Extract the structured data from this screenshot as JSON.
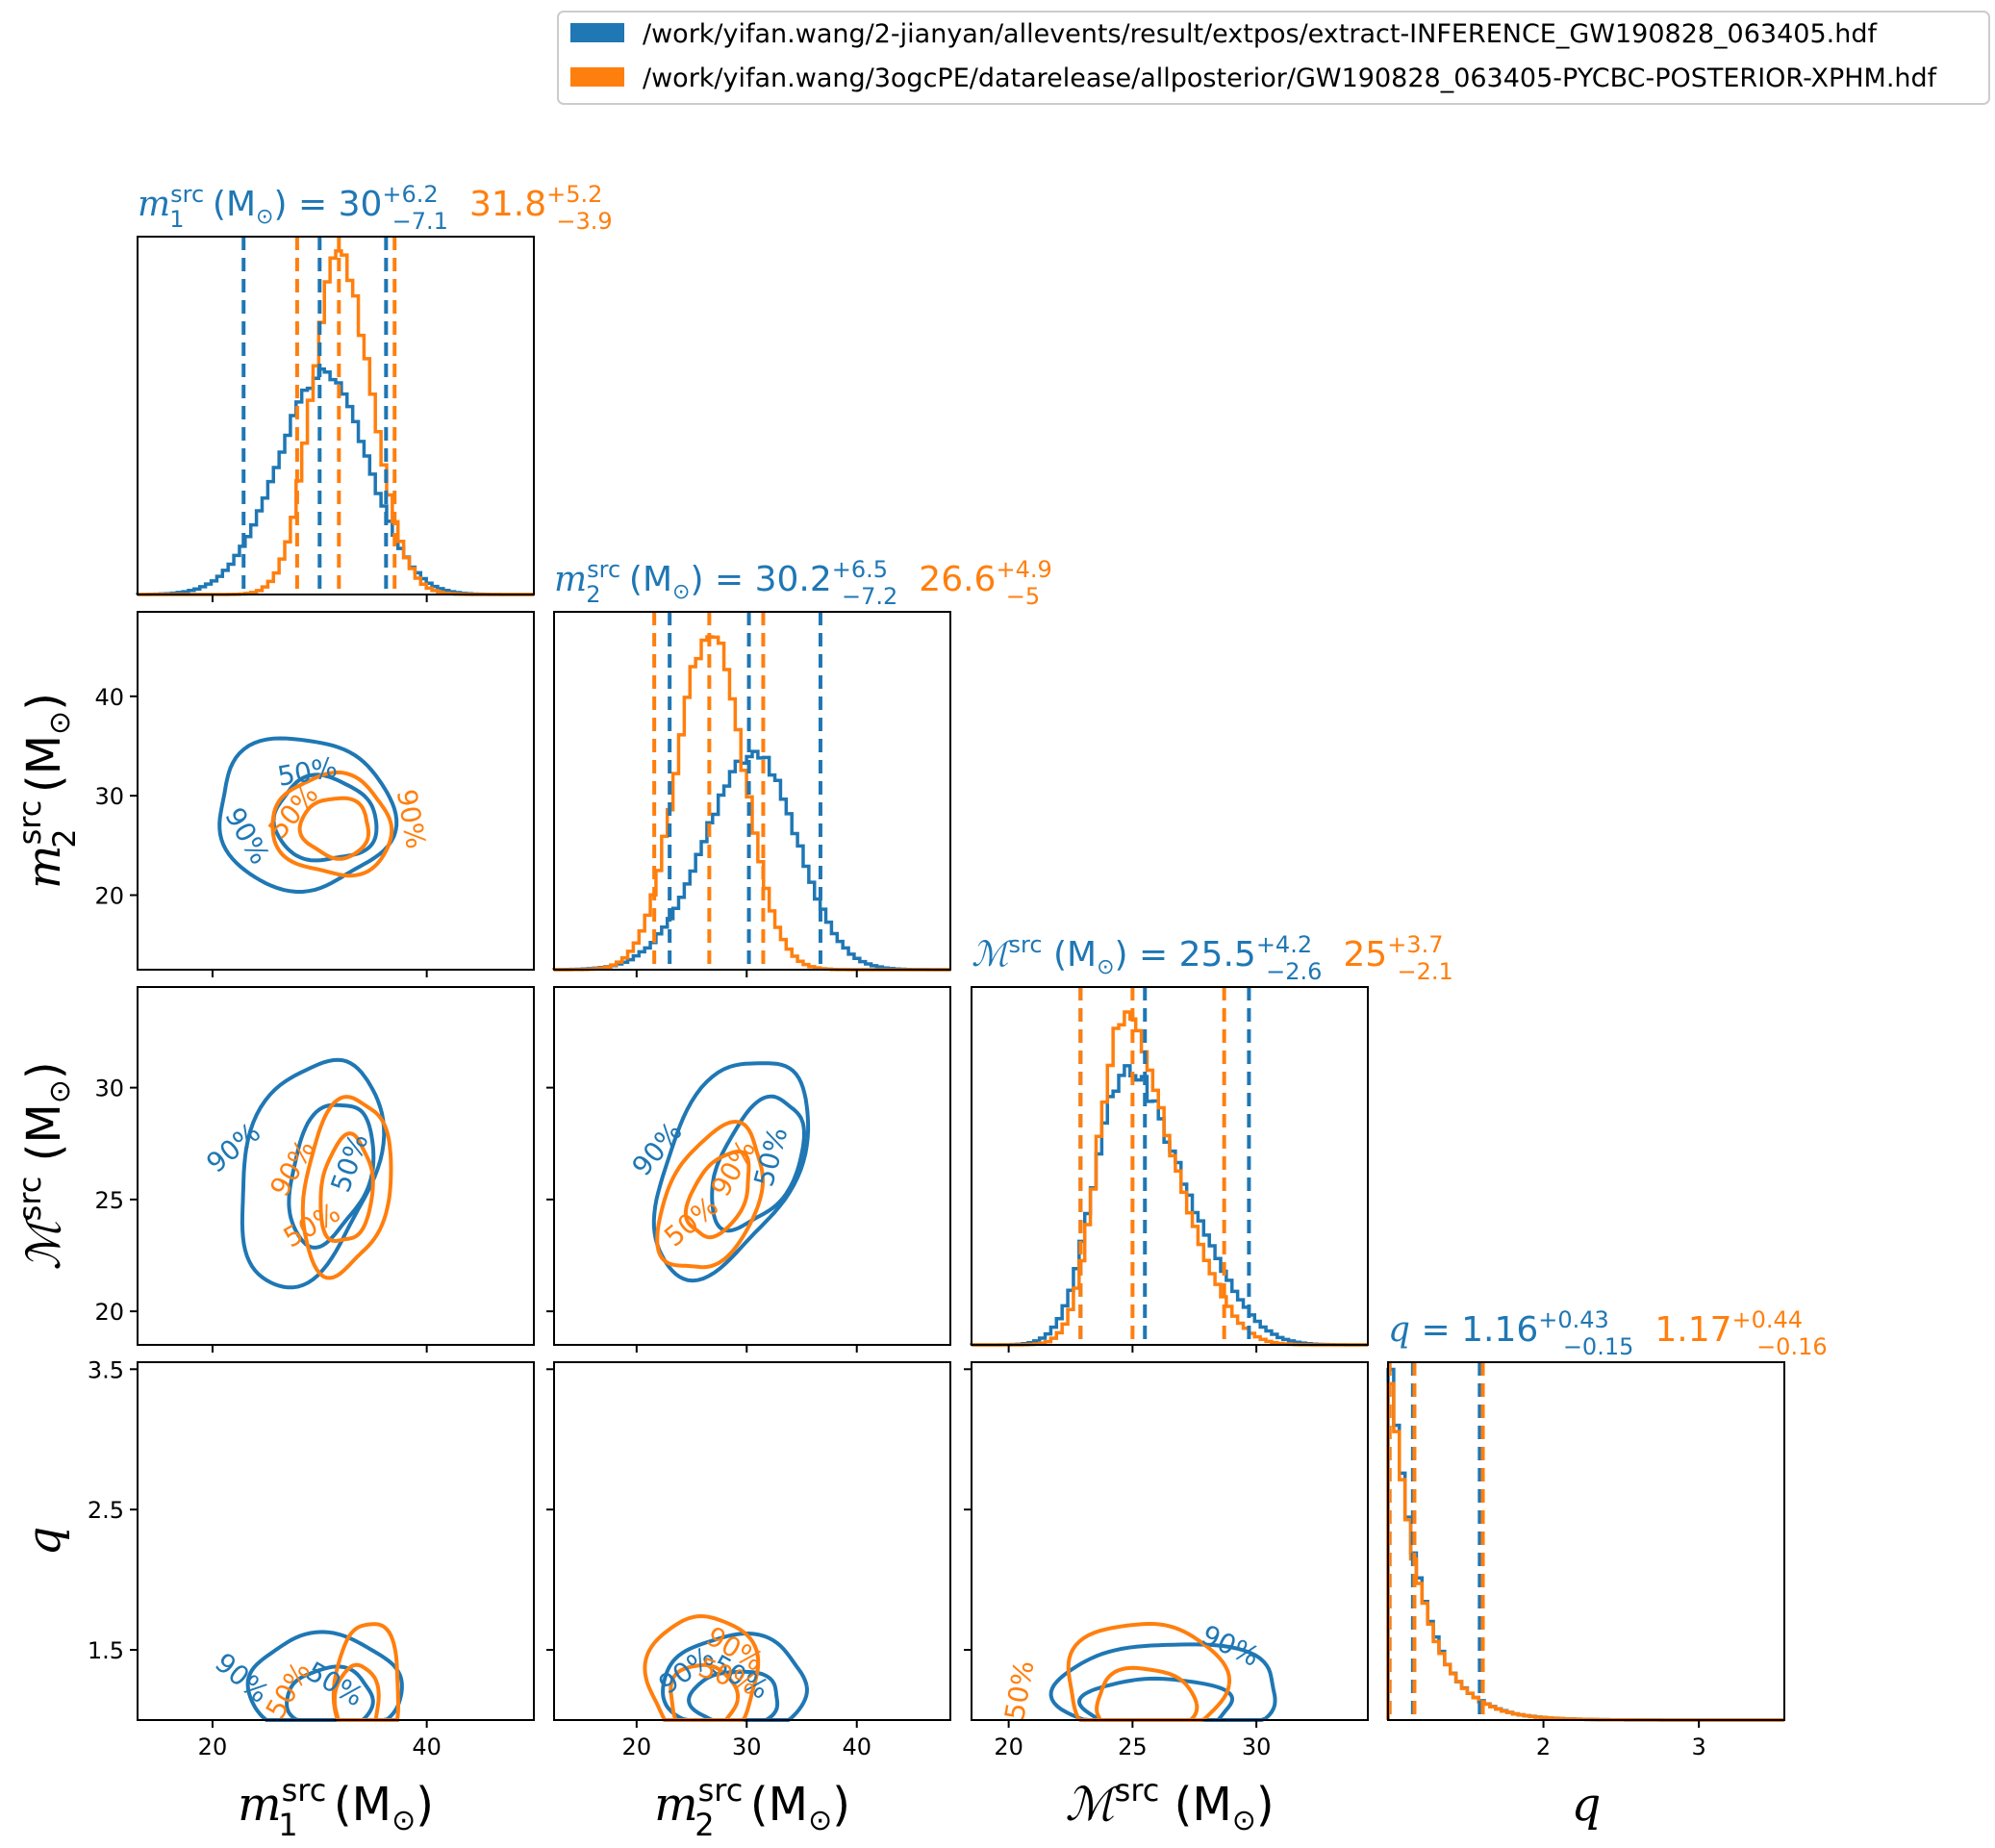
{
  "colors": {
    "series1": "#1f77b4",
    "series2": "#ff7f0e",
    "axis": "#000000"
  },
  "legend": {
    "placement": "top-right",
    "entries": [
      "/work/yifan.wang/2-jianyan/allevents/result/extpos/extract-INFERENCE_GW190828_063405.hdf",
      "/work/yifan.wang/3ogcPE/datarelease/allposterior/GW190828_063405-PYCBC-POSTERIOR-XPHM.hdf"
    ]
  },
  "chart_data": {
    "type": "corner",
    "parameters": [
      {
        "key": "m1",
        "symbol": "m",
        "sub": "1",
        "sup": "src",
        "unit": "(M",
        "range": [
          13,
          50
        ],
        "ticks": [
          20,
          40
        ],
        "tick_labels": [
          "20",
          "40"
        ],
        "summary": [
          {
            "median": "30",
            "plus": "+6.2",
            "minus": "−7.1"
          },
          {
            "median": "31.8",
            "plus": "+5.2",
            "minus": "−3.9"
          }
        ],
        "median_values": [
          30.0,
          31.8
        ],
        "quantile_lines": [
          [
            22.9,
            30.0,
            36.2
          ],
          [
            27.9,
            31.8,
            37.0
          ]
        ]
      },
      {
        "key": "m2",
        "symbol": "m",
        "sub": "2",
        "sup": "src",
        "unit": "(M",
        "range": [
          12.5,
          48.5
        ],
        "ticks": [
          20,
          30,
          40
        ],
        "tick_labels": [
          "20",
          "30",
          "40"
        ],
        "summary": [
          {
            "median": "30.2",
            "plus": "+6.5",
            "minus": "−7.2"
          },
          {
            "median": "26.6",
            "plus": "+4.9",
            "minus": "−5"
          }
        ],
        "median_values": [
          30.2,
          26.6
        ],
        "quantile_lines": [
          [
            23.0,
            30.2,
            36.7
          ],
          [
            21.6,
            26.6,
            31.5
          ]
        ]
      },
      {
        "key": "mc",
        "symbol": "ℳ",
        "sub": "",
        "sup": "src",
        "unit": "(M",
        "range": [
          18.5,
          34.5
        ],
        "ticks": [
          20,
          25,
          30
        ],
        "tick_labels": [
          "20",
          "25",
          "30"
        ],
        "summary": [
          {
            "median": "25.5",
            "plus": "+4.2",
            "minus": "−2.6"
          },
          {
            "median": "25",
            "plus": "+3.7",
            "minus": "−2.1"
          }
        ],
        "median_values": [
          25.5,
          25.0
        ],
        "quantile_lines": [
          [
            22.9,
            25.5,
            29.7
          ],
          [
            22.9,
            25.0,
            28.7
          ]
        ]
      },
      {
        "key": "q",
        "symbol": "q",
        "sub": "",
        "sup": "",
        "unit": "",
        "range": [
          1.0,
          3.55
        ],
        "ticks": [
          1.5,
          2.5,
          3.5
        ],
        "tick_labels": [
          "1.5",
          "2.5",
          "3.5"
        ],
        "xticks": [
          2,
          3
        ],
        "xtick_labels": [
          "2",
          "3"
        ],
        "summary": [
          {
            "median": "1.16",
            "plus": "+0.43",
            "minus": "−0.15"
          },
          {
            "median": "1.17",
            "plus": "+0.44",
            "minus": "−0.16"
          }
        ],
        "median_values": [
          1.16,
          1.17
        ],
        "quantile_lines": [
          [
            1.01,
            1.16,
            1.59
          ],
          [
            1.01,
            1.17,
            1.61
          ]
        ]
      }
    ],
    "contour_labels": [
      "50%",
      "90%"
    ]
  }
}
